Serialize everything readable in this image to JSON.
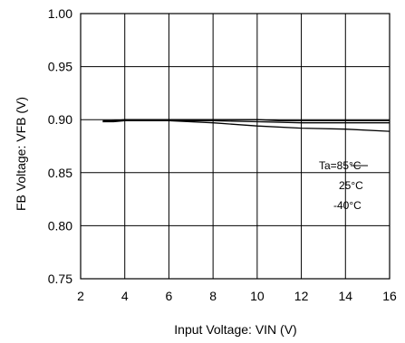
{
  "chart_data": {
    "type": "line",
    "xlabel": "Input Voltage: VIN (V)",
    "ylabel": "FB Voltage: VFB (V)",
    "xlim": [
      2,
      16
    ],
    "ylim": [
      0.75,
      1.0
    ],
    "x_ticks": [
      "2",
      "4",
      "6",
      "8",
      "10",
      "12",
      "14",
      "16"
    ],
    "y_ticks": [
      "1.00",
      "0.95",
      "0.90",
      "0.85",
      "0.80",
      "0.75"
    ],
    "grid": true,
    "legend_labels": [
      "Ta=85°C",
      "25°C",
      "-40°C"
    ],
    "series": [
      {
        "name": "Ta=85°C",
        "x": [
          3.0,
          3.5,
          4,
          6,
          8,
          10,
          12,
          14,
          16
        ],
        "y": [
          0.898,
          0.898,
          0.899,
          0.899,
          0.897,
          0.894,
          0.892,
          0.891,
          0.889
        ]
      },
      {
        "name": "25°C",
        "x": [
          3.0,
          3.5,
          4,
          6,
          8,
          10,
          12,
          14,
          16
        ],
        "y": [
          0.899,
          0.899,
          0.899,
          0.899,
          0.899,
          0.898,
          0.897,
          0.897,
          0.897
        ]
      },
      {
        "name": "-40°C",
        "x": [
          3.0,
          3.5,
          4,
          6,
          8,
          10,
          11,
          12,
          14,
          16
        ],
        "y": [
          0.898,
          0.899,
          0.9,
          0.9,
          0.9,
          0.9,
          0.899,
          0.899,
          0.899,
          0.899
        ]
      }
    ]
  }
}
